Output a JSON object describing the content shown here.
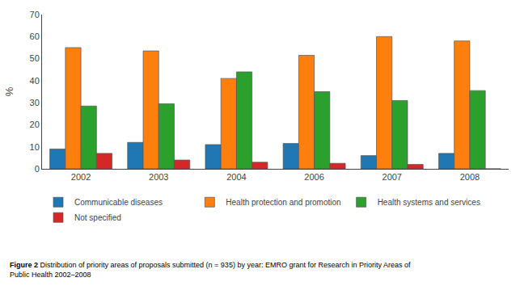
{
  "chart_data": {
    "type": "bar",
    "categories": [
      "2002",
      "2003",
      "2004",
      "2006",
      "2007",
      "2008"
    ],
    "series": [
      {
        "name": "Communicable diseases",
        "values": [
          9,
          12,
          11,
          11.5,
          6,
          7
        ]
      },
      {
        "name": "Health protection and promotion",
        "values": [
          55,
          53.5,
          41,
          51.5,
          60,
          58
        ]
      },
      {
        "name": "Health systems and services",
        "values": [
          28.5,
          29.5,
          44,
          35,
          31,
          35.5
        ]
      },
      {
        "name": "Not specified",
        "values": [
          7,
          4,
          3,
          2.5,
          2,
          0
        ]
      }
    ],
    "ylabel": "%",
    "ylim": [
      0,
      70
    ],
    "yticks": [
      0,
      10,
      20,
      30,
      40,
      50,
      60,
      70
    ],
    "grid": false,
    "legend": "bottom",
    "annotations": [
      "Figure 2",
      "Distribution of priority areas of proposals submitted (n = 935) by year: EMRO grant for Research in Priority Areas of\nPublic Health 2002–2008"
    ]
  }
}
